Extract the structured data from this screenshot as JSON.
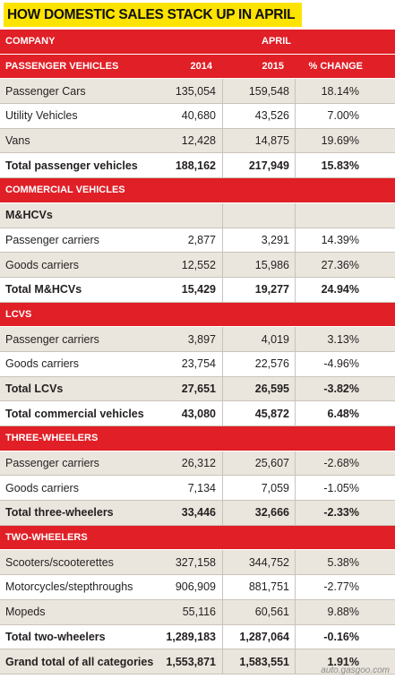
{
  "title": "HOW DOMESTIC SALES STACK UP IN APRIL",
  "header": {
    "company": "COMPANY",
    "month": "APRIL"
  },
  "rows": [
    {
      "type": "hdr",
      "label": "PASSENGER VEHICLES",
      "a": "2014",
      "b": "2015",
      "c": "% CHANGE"
    },
    {
      "type": "data",
      "label": "Passenger Cars",
      "a": "135,054",
      "b": "159,548",
      "c": "18.14%"
    },
    {
      "type": "data",
      "label": "Utility Vehicles",
      "a": "40,680",
      "b": "43,526",
      "c": "7.00%"
    },
    {
      "type": "data",
      "label": "Vans",
      "a": "12,428",
      "b": "14,875",
      "c": "19.69%"
    },
    {
      "type": "total",
      "label": "Total passenger vehicles",
      "a": "188,162",
      "b": "217,949",
      "c": "15.83%"
    },
    {
      "type": "hdr",
      "label": "COMMERCIAL VEHICLES",
      "a": "",
      "b": "",
      "c": ""
    },
    {
      "type": "total",
      "label": "M&HCVs",
      "a": "",
      "b": "",
      "c": ""
    },
    {
      "type": "data",
      "label": "Passenger carriers",
      "a": "2,877",
      "b": "3,291",
      "c": "14.39%"
    },
    {
      "type": "data",
      "label": "Goods carriers",
      "a": "12,552",
      "b": "15,986",
      "c": "27.36%"
    },
    {
      "type": "total",
      "label": "Total M&HCVs",
      "a": "15,429",
      "b": "19,277",
      "c": "24.94%"
    },
    {
      "type": "hdr",
      "label": "LCVS",
      "a": "",
      "b": "",
      "c": ""
    },
    {
      "type": "data",
      "label": "Passenger carriers",
      "a": "3,897",
      "b": "4,019",
      "c": "3.13%"
    },
    {
      "type": "data",
      "label": "Goods carriers",
      "a": "23,754",
      "b": "22,576",
      "c": "-4.96%"
    },
    {
      "type": "total",
      "label": "Total LCVs",
      "a": "27,651",
      "b": "26,595",
      "c": "-3.82%"
    },
    {
      "type": "total",
      "label": "Total commercial vehicles",
      "a": "43,080",
      "b": "45,872",
      "c": "6.48%"
    },
    {
      "type": "hdr",
      "label": "THREE-WHEELERS",
      "a": "",
      "b": "",
      "c": ""
    },
    {
      "type": "data",
      "label": "Passenger carriers",
      "a": "26,312",
      "b": "25,607",
      "c": "-2.68%"
    },
    {
      "type": "data",
      "label": "Goods carriers",
      "a": "7,134",
      "b": "7,059",
      "c": "-1.05%"
    },
    {
      "type": "total",
      "label": "Total three-wheelers",
      "a": "33,446",
      "b": "32,666",
      "c": "-2.33%"
    },
    {
      "type": "hdr",
      "label": "TWO-WHEELERS",
      "a": "",
      "b": "",
      "c": ""
    },
    {
      "type": "data",
      "label": "Scooters/scooterettes",
      "a": "327,158",
      "b": "344,752",
      "c": "5.38%"
    },
    {
      "type": "data",
      "label": "Motorcycles/stepthroughs",
      "a": "906,909",
      "b": "881,751",
      "c": "-2.77%"
    },
    {
      "type": "data",
      "label": "Mopeds",
      "a": "55,116",
      "b": "60,561",
      "c": "9.88%"
    },
    {
      "type": "total",
      "label": "Total two-wheelers",
      "a": "1,289,183",
      "b": "1,287,064",
      "c": "-0.16%"
    },
    {
      "type": "total",
      "label": "Grand total of all categories",
      "a": "1,553,871",
      "b": "1,583,551",
      "c": "1.91%"
    }
  ],
  "watermark": "auto.gasgoo.com",
  "colors": {
    "header_red": "#e01f26",
    "title_yellow": "#fde300",
    "row_tint": "#ebe6dd"
  }
}
